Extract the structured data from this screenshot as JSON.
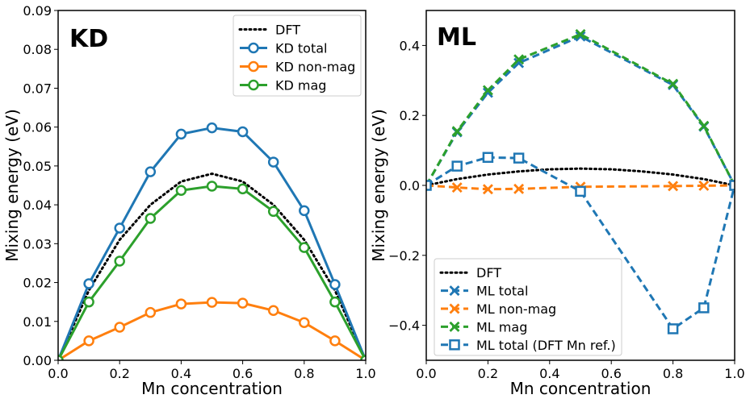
{
  "chart_data": [
    {
      "type": "line",
      "panel_tag": "KD",
      "xlabel": "Mn concentration",
      "ylabel": "Mixing energy (eV)",
      "xlim": [
        0.0,
        1.0
      ],
      "ylim": [
        0.0,
        0.09
      ],
      "xticks": [
        0.0,
        0.2,
        0.4,
        0.6,
        0.8,
        1.0
      ],
      "xtick_labels": [
        "0.0",
        "0.2",
        "0.4",
        "0.6",
        "0.8",
        "1.0"
      ],
      "yticks": [
        0.0,
        0.01,
        0.02,
        0.03,
        0.04,
        0.05,
        0.06,
        0.07,
        0.08,
        0.09
      ],
      "ytick_labels": [
        "0.00",
        "0.01",
        "0.02",
        "0.03",
        "0.04",
        "0.05",
        "0.06",
        "0.07",
        "0.08",
        "0.09"
      ],
      "legend_position": "top-right",
      "series": [
        {
          "name": "DFT",
          "color": "#000000",
          "style": "dotted",
          "marker": "none",
          "x": [
            0.0,
            0.1,
            0.2,
            0.3,
            0.4,
            0.5,
            0.6,
            0.7,
            0.8,
            0.9,
            1.0
          ],
          "values": [
            0.0,
            0.018,
            0.031,
            0.04,
            0.046,
            0.048,
            0.046,
            0.04,
            0.031,
            0.018,
            0.0
          ]
        },
        {
          "name": "KD total",
          "color": "#1f77b4",
          "style": "solid",
          "marker": "circle",
          "x": [
            0.0,
            0.1,
            0.2,
            0.3,
            0.4,
            0.5,
            0.6,
            0.7,
            0.8,
            0.9,
            1.0
          ],
          "values": [
            0.0,
            0.0197,
            0.034,
            0.0485,
            0.0582,
            0.0598,
            0.0588,
            0.051,
            0.0385,
            0.0195,
            0.0
          ]
        },
        {
          "name": "KD non-mag",
          "color": "#ff7f0e",
          "style": "solid",
          "marker": "circle",
          "x": [
            0.0,
            0.1,
            0.2,
            0.3,
            0.4,
            0.5,
            0.6,
            0.7,
            0.8,
            0.9,
            1.0
          ],
          "values": [
            0.0,
            0.005,
            0.0085,
            0.0123,
            0.0145,
            0.0149,
            0.0147,
            0.0128,
            0.0097,
            0.005,
            0.0
          ]
        },
        {
          "name": "KD mag",
          "color": "#2ca02c",
          "style": "solid",
          "marker": "circle",
          "x": [
            0.0,
            0.1,
            0.2,
            0.3,
            0.4,
            0.5,
            0.6,
            0.7,
            0.8,
            0.9,
            1.0
          ],
          "values": [
            0.0,
            0.015,
            0.0255,
            0.0365,
            0.0437,
            0.0448,
            0.0441,
            0.0383,
            0.029,
            0.015,
            0.0
          ]
        }
      ]
    },
    {
      "type": "line",
      "panel_tag": "ML",
      "xlabel": "Mn concentration",
      "ylabel": "Mixing energy (eV)",
      "xlim": [
        0.0,
        1.0
      ],
      "ylim": [
        -0.5,
        0.5
      ],
      "xticks": [
        0.0,
        0.2,
        0.4,
        0.6,
        0.8,
        1.0
      ],
      "xtick_labels": [
        "0.0",
        "0.2",
        "0.4",
        "0.6",
        "0.8",
        "1.0"
      ],
      "yticks": [
        -0.4,
        -0.2,
        0.0,
        0.2,
        0.4
      ],
      "ytick_labels": [
        "−0.4",
        "−0.2",
        "0.0",
        "0.2",
        "0.4"
      ],
      "legend_position": "bottom-left",
      "series": [
        {
          "name": "DFT",
          "color": "#000000",
          "style": "dotted",
          "marker": "none",
          "x": [
            0.0,
            0.1,
            0.2,
            0.3,
            0.4,
            0.5,
            0.6,
            0.7,
            0.8,
            0.9,
            1.0
          ],
          "values": [
            0.0,
            0.018,
            0.031,
            0.04,
            0.046,
            0.048,
            0.046,
            0.04,
            0.031,
            0.018,
            0.0
          ]
        },
        {
          "name": "ML total",
          "color": "#1f77b4",
          "style": "dashed",
          "marker": "x",
          "x": [
            0.0,
            0.1,
            0.2,
            0.3,
            0.5,
            0.8,
            0.9,
            1.0
          ],
          "values": [
            0.0,
            0.152,
            0.265,
            0.35,
            0.426,
            0.287,
            0.168,
            0.0
          ]
        },
        {
          "name": "ML non-mag",
          "color": "#ff7f0e",
          "style": "dashed",
          "marker": "x",
          "x": [
            0.0,
            0.1,
            0.2,
            0.3,
            0.5,
            0.8,
            0.9,
            1.0
          ],
          "values": [
            0.0,
            -0.006,
            -0.011,
            -0.01,
            -0.004,
            -0.002,
            -0.001,
            0.0
          ]
        },
        {
          "name": "ML mag",
          "color": "#2ca02c",
          "style": "dashed",
          "marker": "x",
          "x": [
            0.0,
            0.1,
            0.2,
            0.3,
            0.5,
            0.8,
            0.9,
            1.0
          ],
          "values": [
            0.0,
            0.155,
            0.272,
            0.36,
            0.432,
            0.29,
            0.17,
            0.0
          ]
        },
        {
          "name": "ML total (DFT Mn ref.)",
          "color": "#1f77b4",
          "style": "dashed",
          "marker": "square",
          "x": [
            0.0,
            0.1,
            0.2,
            0.3,
            0.5,
            0.8,
            0.9,
            1.0
          ],
          "values": [
            0.0,
            0.055,
            0.08,
            0.078,
            -0.017,
            -0.41,
            -0.35,
            0.0
          ]
        }
      ]
    }
  ]
}
